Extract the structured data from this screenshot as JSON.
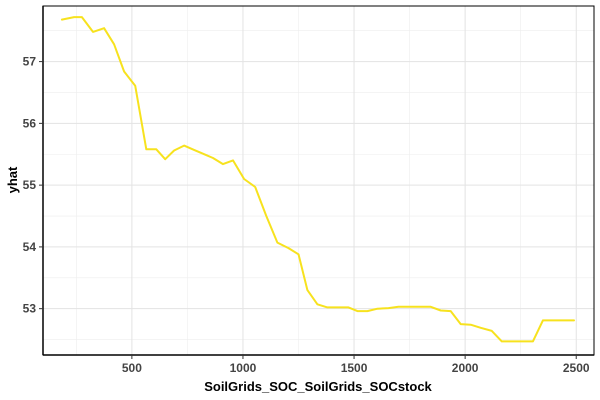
{
  "chart_data": {
    "type": "line",
    "title": "",
    "xlabel": "SoilGrids_SOC_SoilGrids_SOCstock",
    "ylabel": "yhat",
    "xlim": [
      100,
      2580
    ],
    "ylim": [
      52.25,
      57.9
    ],
    "xticks": [
      500,
      1000,
      1500,
      2000,
      2500
    ],
    "yticks": [
      53,
      54,
      55,
      56,
      57
    ],
    "xtick_labels": [
      "500",
      "1000",
      "1500",
      "2000",
      "2500"
    ],
    "ytick_labels": [
      "53",
      "54",
      "55",
      "56",
      "57"
    ],
    "grid": true,
    "legend": "none",
    "series": [
      {
        "color": "#f7e21e",
        "x": [
          185,
          240,
          275,
          325,
          375,
          420,
          465,
          515,
          565,
          610,
          650,
          690,
          735,
          780,
          825,
          865,
          910,
          955,
          1005,
          1055,
          1105,
          1155,
          1205,
          1250,
          1290,
          1335,
          1380,
          1425,
          1475,
          1515,
          1560,
          1605,
          1655,
          1700,
          1750,
          1800,
          1845,
          1890,
          1935,
          1980,
          2025,
          2070,
          2120,
          2165,
          2215,
          2260,
          2305,
          2350,
          2395,
          2440,
          2490
        ],
        "y": [
          57.68,
          57.72,
          57.72,
          57.48,
          57.54,
          57.28,
          56.84,
          56.61,
          55.58,
          55.58,
          55.42,
          55.56,
          55.64,
          55.57,
          55.5,
          55.44,
          55.34,
          55.4,
          55.1,
          54.97,
          54.5,
          54.07,
          53.98,
          53.88,
          53.3,
          53.07,
          53.02,
          53.02,
          53.02,
          52.96,
          52.96,
          53.0,
          53.01,
          53.03,
          53.03,
          53.03,
          53.03,
          52.97,
          52.96,
          52.75,
          52.74,
          52.69,
          52.64,
          52.47,
          52.47,
          52.47,
          52.47,
          52.81,
          52.81,
          52.81,
          52.81
        ]
      }
    ]
  }
}
